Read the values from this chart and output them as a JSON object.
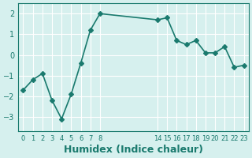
{
  "x": [
    0,
    1,
    2,
    3,
    4,
    5,
    6,
    7,
    8,
    14,
    15,
    16,
    17,
    18,
    19,
    20,
    21,
    22,
    23
  ],
  "y": [
    -1.7,
    -1.2,
    -0.9,
    -2.2,
    -3.1,
    -1.9,
    -0.4,
    1.2,
    2.0,
    1.7,
    1.8,
    0.7,
    0.5,
    0.7,
    0.1,
    0.1,
    0.4,
    -0.6,
    -0.5
  ],
  "line_color": "#1a7a6e",
  "marker": "D",
  "markersize": 3,
  "linewidth": 1.2,
  "xlabel": "Humidex (Indice chaleur)",
  "xlabel_fontsize": 9,
  "xlabel_fontweight": "bold",
  "bg_color": "#d6f0ee",
  "grid_color": "#ffffff",
  "tick_color": "#1a7a6e",
  "yticks": [
    -3,
    -2,
    -1,
    0,
    1,
    2
  ],
  "xlim": [
    -0.5,
    23.5
  ],
  "ylim": [
    -3.7,
    2.5
  ]
}
